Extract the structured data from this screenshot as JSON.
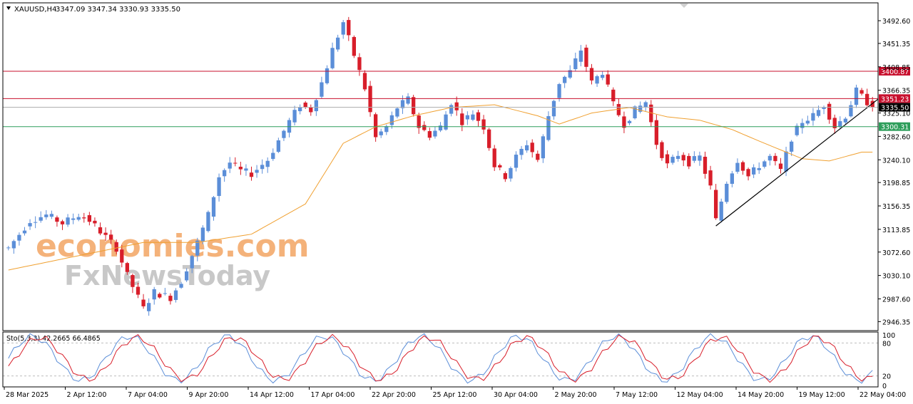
{
  "header": {
    "symbol": "XAUUSD,H4",
    "ohlc": "3347.09 3347.34 3330.93 3335.50"
  },
  "watermark": {
    "line1": "economies.com",
    "line2": "FxNewsToday"
  },
  "colors": {
    "bull": "#5b8ed8",
    "bear": "#d81e2a",
    "ma": "#f0a030",
    "resistance": "#c8102e",
    "support": "#2e9e5b",
    "current": "#000000",
    "trend": "#000000",
    "stoch_main": "#5b8ed8",
    "stoch_signal": "#d81e2a",
    "watermark_orange": "#f4b27a",
    "watermark_gray": "#c8c8c8"
  },
  "chart_data": [
    {
      "type": "candlestick",
      "symbol": "XAUUSD",
      "timeframe": "H4",
      "last_bar": {
        "open": 3347.09,
        "high": 3347.34,
        "low": 3330.93,
        "close": 3335.5
      },
      "ylim": [
        2930,
        3525
      ],
      "y_ticks": [
        "3492.60",
        "3451.35",
        "3408.85",
        "3366.35",
        "3325.10",
        "3282.60",
        "3240.10",
        "3198.85",
        "3156.35",
        "3113.85",
        "3072.60",
        "3030.10",
        "2987.60",
        "2946.35"
      ],
      "x_ticks": [
        "28 Mar 2025",
        "2 Apr 12:00",
        "7 Apr 04:00",
        "9 Apr 20:00",
        "14 Apr 12:00",
        "17 Apr 04:00",
        "22 Apr 20:00",
        "25 Apr 12:00",
        "30 Apr 04:00",
        "2 May 20:00",
        "7 May 12:00",
        "12 May 04:00",
        "14 May 20:00",
        "19 May 12:00",
        "22 May 04:00"
      ],
      "price_levels": [
        {
          "label": "3400.87",
          "value": 3400.87,
          "kind": "resistance"
        },
        {
          "label": "3351.23",
          "value": 3351.23,
          "kind": "resistance"
        },
        {
          "label": "3335.50",
          "value": 3335.5,
          "kind": "current"
        },
        {
          "label": "3300.31",
          "value": 3300.31,
          "kind": "support"
        }
      ],
      "trendline": {
        "from_bar": 131,
        "from_price": 3120,
        "to_bar": 161,
        "to_price": 3350
      },
      "moving_average_anchors": [
        [
          0,
          3040
        ],
        [
          15,
          3070
        ],
        [
          25,
          3090
        ],
        [
          35,
          3090
        ],
        [
          45,
          3105
        ],
        [
          55,
          3160
        ],
        [
          62,
          3270
        ],
        [
          68,
          3300
        ],
        [
          75,
          3320
        ],
        [
          82,
          3335
        ],
        [
          90,
          3340
        ],
        [
          98,
          3320
        ],
        [
          102,
          3305
        ],
        [
          108,
          3325
        ],
        [
          115,
          3335
        ],
        [
          122,
          3318
        ],
        [
          128,
          3312
        ],
        [
          134,
          3295
        ],
        [
          140,
          3270
        ],
        [
          147,
          3242
        ],
        [
          152,
          3238
        ],
        [
          158,
          3254
        ]
      ],
      "price_path": [
        [
          0,
          3080
        ],
        [
          4,
          3130
        ],
        [
          7,
          3140
        ],
        [
          10,
          3125
        ],
        [
          13,
          3140
        ],
        [
          15,
          3130
        ],
        [
          18,
          3100
        ],
        [
          20,
          3080
        ],
        [
          22,
          3030
        ],
        [
          25,
          2970
        ],
        [
          27,
          3000
        ],
        [
          30,
          2990
        ],
        [
          32,
          3020
        ],
        [
          35,
          3090
        ],
        [
          37,
          3140
        ],
        [
          39,
          3210
        ],
        [
          41,
          3235
        ],
        [
          43,
          3220
        ],
        [
          45,
          3215
        ],
        [
          48,
          3240
        ],
        [
          52,
          3310
        ],
        [
          54,
          3340
        ],
        [
          56,
          3330
        ],
        [
          58,
          3380
        ],
        [
          60,
          3440
        ],
        [
          62,
          3490
        ],
        [
          64,
          3430
        ],
        [
          66,
          3370
        ],
        [
          68,
          3280
        ],
        [
          70,
          3300
        ],
        [
          72,
          3335
        ],
        [
          74,
          3350
        ],
        [
          76,
          3300
        ],
        [
          78,
          3285
        ],
        [
          80,
          3300
        ],
        [
          82,
          3345
        ],
        [
          84,
          3310
        ],
        [
          86,
          3325
        ],
        [
          88,
          3300
        ],
        [
          90,
          3230
        ],
        [
          92,
          3210
        ],
        [
          94,
          3245
        ],
        [
          96,
          3270
        ],
        [
          98,
          3240
        ],
        [
          100,
          3320
        ],
        [
          102,
          3380
        ],
        [
          104,
          3400
        ],
        [
          106,
          3440
        ],
        [
          108,
          3380
        ],
        [
          110,
          3400
        ],
        [
          112,
          3340
        ],
        [
          114,
          3305
        ],
        [
          116,
          3330
        ],
        [
          118,
          3345
        ],
        [
          120,
          3270
        ],
        [
          122,
          3230
        ],
        [
          124,
          3250
        ],
        [
          126,
          3235
        ],
        [
          128,
          3245
        ],
        [
          130,
          3190
        ],
        [
          131,
          3130
        ],
        [
          133,
          3200
        ],
        [
          135,
          3240
        ],
        [
          137,
          3210
        ],
        [
          139,
          3230
        ],
        [
          141,
          3245
        ],
        [
          143,
          3220
        ],
        [
          145,
          3280
        ],
        [
          147,
          3310
        ],
        [
          149,
          3320
        ],
        [
          151,
          3340
        ],
        [
          153,
          3300
        ],
        [
          155,
          3320
        ],
        [
          157,
          3365
        ],
        [
          159,
          3345
        ],
        [
          160,
          3335
        ]
      ]
    },
    {
      "type": "line",
      "indicator": "Sto(5,3,3)",
      "main": "42.2665",
      "signal": "66.4865",
      "ylim": [
        0,
        100
      ],
      "levels": [
        20,
        80
      ],
      "y_ticks": [
        "100",
        "80",
        "20",
        "0"
      ],
      "series": [
        {
          "name": "42.2665",
          "role": "main",
          "period": 18,
          "phase": 0.0,
          "amp": 40,
          "offset": 52
        },
        {
          "name": "66.4865",
          "role": "signal",
          "period": 18,
          "phase": 0.45,
          "amp": 38,
          "offset": 52
        }
      ]
    }
  ]
}
